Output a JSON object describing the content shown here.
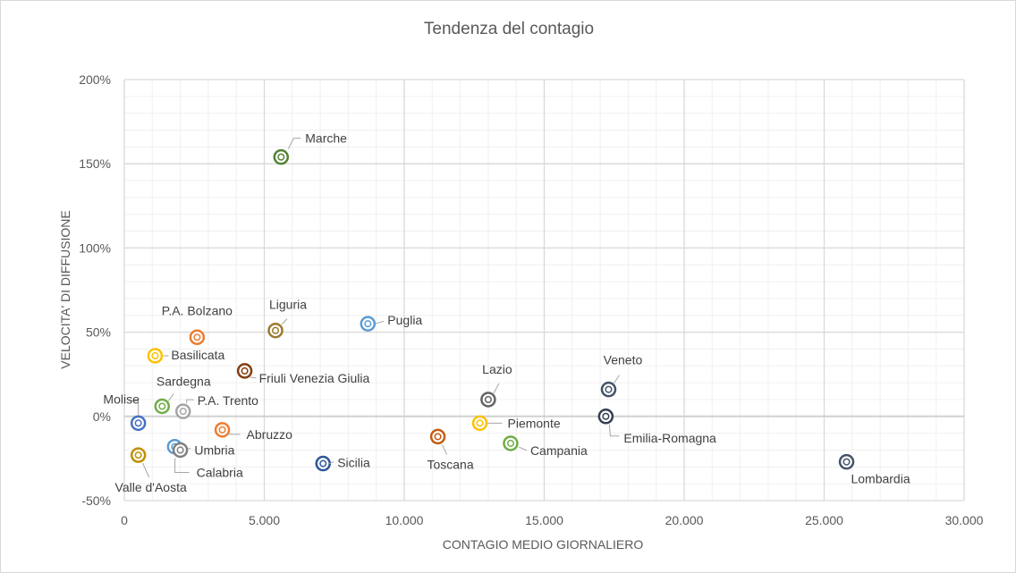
{
  "chart_data": {
    "type": "scatter",
    "title": "Tendenza del contagio",
    "xlabel": "CONTAGIO MEDIO GIORNALIERO",
    "ylabel": "VELOCITA' DI DIFFUSIONE",
    "xlim": [
      0,
      30000
    ],
    "ylim": [
      -50,
      200
    ],
    "x_ticks": [
      0,
      5000,
      10000,
      15000,
      20000,
      25000,
      30000
    ],
    "x_tick_labels": [
      "0",
      "5.000",
      "10.000",
      "15.000",
      "20.000",
      "25.000",
      "30.000"
    ],
    "y_ticks": [
      -50,
      0,
      50,
      100,
      150,
      200
    ],
    "y_tick_labels": [
      "-50%",
      "0%",
      "50%",
      "100%",
      "150%",
      "200%"
    ],
    "grid": true,
    "points": [
      {
        "name": "Marche",
        "x": 5600,
        "y": 154,
        "color": "#548235"
      },
      {
        "name": "P.A. Bolzano",
        "x": 2600,
        "y": 47,
        "color": "#ed7d31"
      },
      {
        "name": "Liguria",
        "x": 5400,
        "y": 51,
        "color": "#9c7a30"
      },
      {
        "name": "Puglia",
        "x": 8700,
        "y": 55,
        "color": "#5b9bd5"
      },
      {
        "name": "Basilicata",
        "x": 1100,
        "y": 36,
        "color": "#ffc000"
      },
      {
        "name": "Friuli Venezia Giulia",
        "x": 4300,
        "y": 27,
        "color": "#843c0c"
      },
      {
        "name": "Sardegna",
        "x": 1350,
        "y": 6,
        "color": "#70ad47"
      },
      {
        "name": "P.A. Trento",
        "x": 2100,
        "y": 3,
        "color": "#a5a5a5"
      },
      {
        "name": "Molise",
        "x": 500,
        "y": -4,
        "color": "#4472c4"
      },
      {
        "name": "Lazio",
        "x": 13000,
        "y": 10,
        "color": "#636363"
      },
      {
        "name": "Veneto",
        "x": 17300,
        "y": 16,
        "color": "#44546a"
      },
      {
        "name": "Emilia-Romagna",
        "x": 17200,
        "y": 0,
        "color": "#333f50"
      },
      {
        "name": "Piemonte",
        "x": 12700,
        "y": -4,
        "color": "#ffc000"
      },
      {
        "name": "Abruzzo",
        "x": 3500,
        "y": -8,
        "color": "#ed7d31"
      },
      {
        "name": "Toscana",
        "x": 11200,
        "y": -12,
        "color": "#c55a11"
      },
      {
        "name": "Campania",
        "x": 13800,
        "y": -16,
        "color": "#70ad47"
      },
      {
        "name": "Umbria",
        "x": 1800,
        "y": -18,
        "color": "#5b9bd5"
      },
      {
        "name": "Calabria",
        "x": 2000,
        "y": -20,
        "color": "#7f7f7f"
      },
      {
        "name": "Valle d'Aosta",
        "x": 500,
        "y": -23,
        "color": "#bf9000"
      },
      {
        "name": "Sicilia",
        "x": 7100,
        "y": -28,
        "color": "#2f5597"
      },
      {
        "name": "Lombardia",
        "x": 25800,
        "y": -27,
        "color": "#44546a"
      }
    ]
  }
}
